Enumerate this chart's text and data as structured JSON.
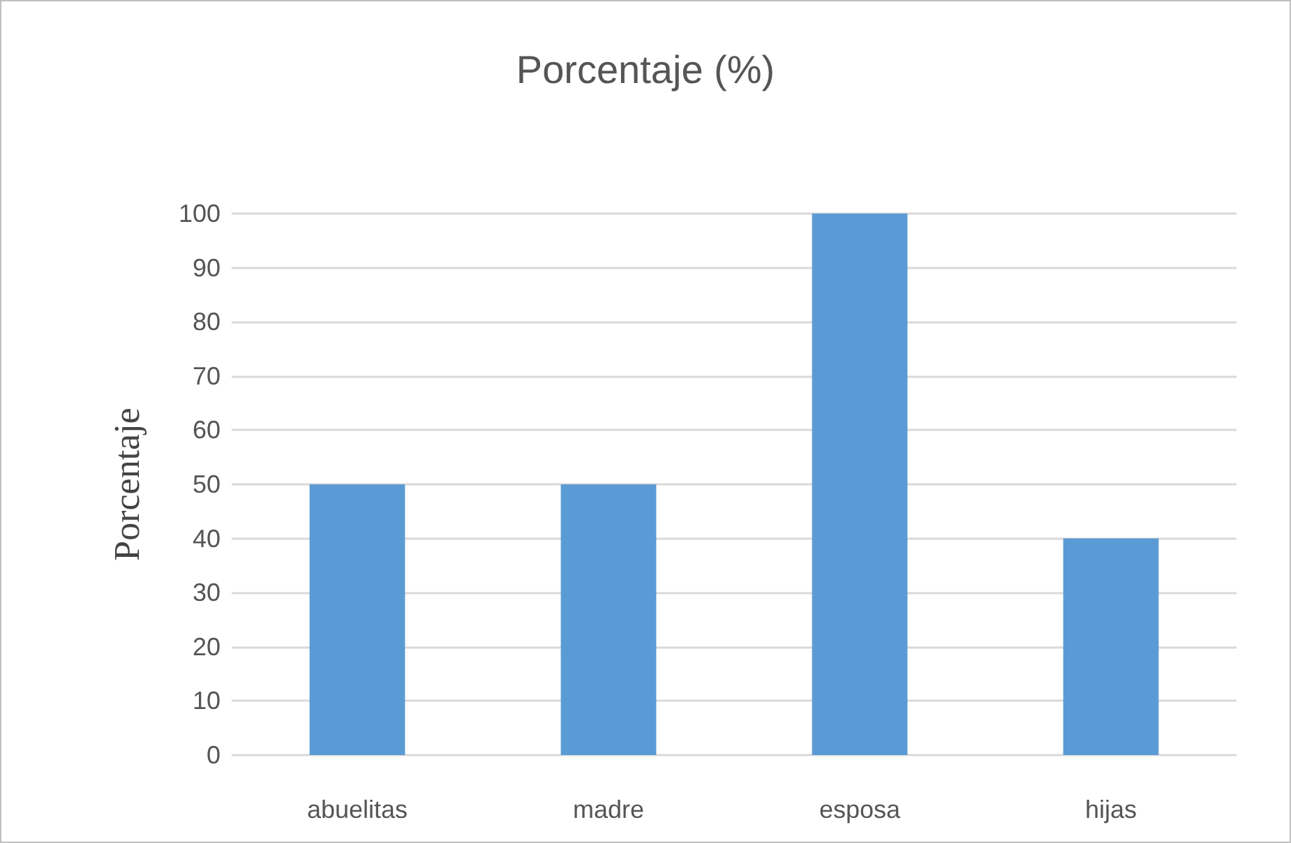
{
  "chart_data": {
    "type": "bar",
    "title": "Porcentaje (%)",
    "ylabel": "Porcentaje",
    "categories": [
      "abuelitas",
      "madre",
      "esposa",
      "hijas"
    ],
    "values": [
      50,
      50,
      100,
      40
    ],
    "color": "#5b9bd5",
    "ylim": [
      0,
      100
    ],
    "yticks": [
      0,
      10,
      20,
      30,
      40,
      50,
      60,
      70,
      80,
      90,
      100
    ],
    "grid": "y"
  }
}
